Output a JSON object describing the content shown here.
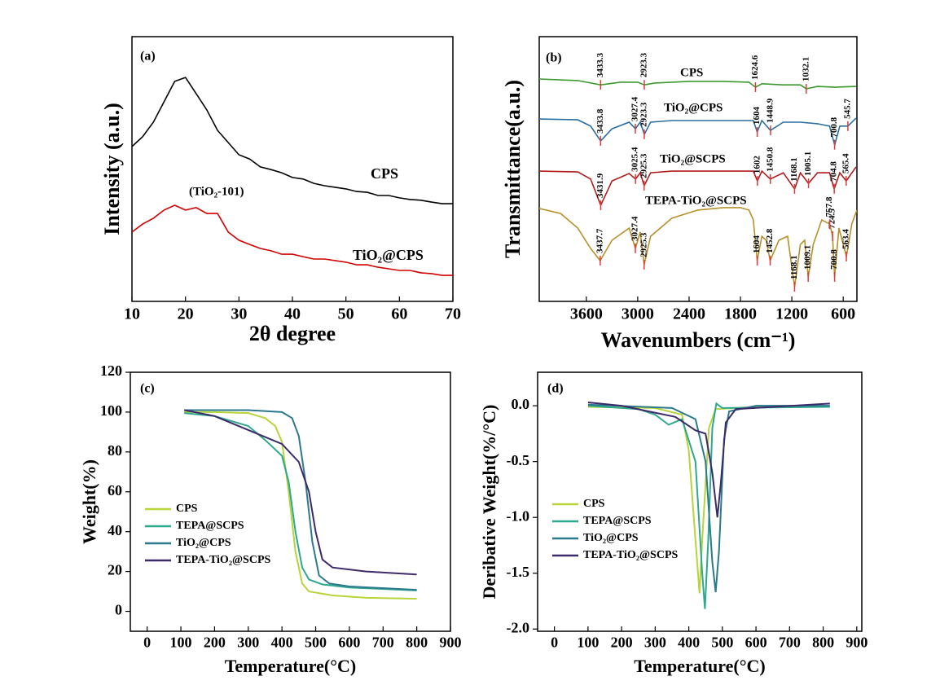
{
  "chart_data": [
    {
      "type": "line",
      "panel": "(a)",
      "xlabel": "2θ degree",
      "ylabel": "Intensity (a.u.)",
      "xlim": [
        10,
        70
      ],
      "xticks": [
        10,
        20,
        30,
        40,
        50,
        60,
        70
      ],
      "ylim": [
        0,
        100
      ],
      "annotation": "(TiO₂-101)",
      "series": [
        {
          "name": "CPS",
          "color": "#000000",
          "x": [
            10,
            12,
            14,
            16,
            18,
            20,
            22,
            24,
            26,
            28,
            30,
            32,
            34,
            36,
            38,
            40,
            42,
            44,
            46,
            48,
            50,
            52,
            54,
            56,
            58,
            60,
            62,
            64,
            66,
            68,
            70
          ],
          "values": [
            58.5,
            62.2,
            67.7,
            75.4,
            83.1,
            84.6,
            78.5,
            72.3,
            64.6,
            60,
            55.4,
            53.8,
            50.8,
            49.8,
            48.6,
            46.8,
            46.2,
            44.6,
            43.7,
            43.1,
            42.5,
            41.5,
            41.2,
            40,
            40,
            39.1,
            38.5,
            38.2,
            37.5,
            36.9,
            36.9
          ]
        },
        {
          "name": "TiO₂@CPS",
          "color": "#d40000",
          "x": [
            10,
            12,
            14,
            16,
            18,
            20,
            22,
            24,
            26,
            28,
            30,
            32,
            34,
            36,
            38,
            40,
            42,
            44,
            46,
            48,
            50,
            52,
            54,
            56,
            58,
            60,
            62,
            64,
            66,
            68,
            70
          ],
          "values": [
            26.2,
            29.2,
            31.4,
            34.5,
            36.3,
            34.5,
            35.4,
            33.2,
            33.2,
            26.2,
            23.1,
            21.5,
            20,
            19.1,
            17.8,
            17.8,
            16.9,
            16,
            16,
            15.4,
            14.8,
            13.8,
            13.8,
            12.9,
            12.3,
            11.7,
            11.7,
            10.8,
            10.5,
            9.8,
            9.8
          ]
        }
      ]
    },
    {
      "type": "line",
      "panel": "(b)",
      "xlabel": "Wavenumbers (cm⁻¹)",
      "ylabel": "Transmittance(a.u.)",
      "xlim": [
        4150,
        440
      ],
      "xticks": [
        3600,
        3000,
        2400,
        1800,
        1200,
        600
      ],
      "ylim": [
        0,
        100
      ],
      "peak_color": "#e03a3a",
      "series": [
        {
          "name": "CPS",
          "color": "#3a9a2e",
          "x": [
            4150,
            3700,
            3433,
            3200,
            3000,
            2923,
            2800,
            2400,
            2000,
            1700,
            1624,
            1550,
            1300,
            1100,
            1032,
            900,
            700,
            450
          ],
          "values": [
            84,
            83.4,
            81.8,
            82.8,
            82.8,
            81.8,
            82.5,
            83.1,
            83.1,
            82.8,
            80.9,
            82.2,
            81.8,
            81.8,
            80.3,
            81.2,
            80.9,
            81.2
          ],
          "peaks": [
            3433.3,
            2923.3,
            1624.6,
            1032.1
          ]
        },
        {
          "name": "TiO₂@CPS",
          "color": "#2a6fa0",
          "x": [
            4150,
            3700,
            3550,
            3433,
            3300,
            3100,
            3027,
            2970,
            2923,
            2850,
            2600,
            2200,
            1800,
            1650,
            1604,
            1550,
            1449,
            1300,
            1100,
            900,
            760,
            700,
            640,
            546,
            450
          ],
          "values": [
            68.9,
            68.6,
            66.2,
            60.6,
            65.2,
            67.7,
            65.2,
            67.7,
            63.1,
            67.7,
            68.3,
            68.3,
            68.3,
            68.3,
            64,
            68.3,
            64.6,
            67.7,
            67.7,
            67.1,
            66.2,
            59.1,
            66.2,
            66.2,
            69.2
          ],
          "peaks": [
            3433.8,
            3027.4,
            2923.3,
            1604,
            1448.9,
            700.8,
            545.7
          ]
        },
        {
          "name": "TiO₂@SCPS",
          "color": "#b01c1c",
          "x": [
            4150,
            3700,
            3550,
            3432,
            3300,
            3100,
            3025,
            2970,
            2925,
            2850,
            2600,
            2200,
            1800,
            1650,
            1602,
            1550,
            1451,
            1300,
            1168,
            1100,
            1005,
            900,
            760,
            705,
            640,
            565,
            450
          ],
          "values": [
            49.2,
            48.9,
            46.2,
            36.3,
            45.5,
            48.3,
            46.2,
            48.6,
            43.7,
            48.6,
            49.2,
            49.2,
            49.2,
            49.2,
            45.5,
            49.2,
            46.2,
            48.6,
            42.5,
            48.6,
            44.6,
            48.6,
            48.6,
            42.5,
            48.6,
            45.5,
            50.8
          ],
          "peaks": [
            3431.9,
            3025.4,
            2925.3,
            1602,
            1450.8,
            1168.1,
            1005.1,
            704.8,
            565.4
          ]
        },
        {
          "name": "TEPA-TiO₂@SCPS",
          "color": "#b8902a",
          "x": [
            4150,
            3900,
            3700,
            3550,
            3438,
            3300,
            3100,
            3027,
            2970,
            2925,
            2850,
            2600,
            2300,
            2000,
            1800,
            1700,
            1650,
            1604,
            1550,
            1500,
            1453,
            1350,
            1250,
            1168,
            1100,
            1050,
            1009,
            950,
            850,
            758,
            724,
            701,
            650,
            563,
            500,
            440
          ],
          "values": [
            35.1,
            33.2,
            27.7,
            20,
            15.4,
            23.1,
            27.7,
            20,
            26.2,
            13.8,
            24.6,
            31.4,
            34.5,
            35.4,
            35.4,
            34.5,
            30.8,
            15.4,
            24.6,
            23.1,
            15.4,
            23.1,
            24.6,
            5.5,
            21.5,
            23.1,
            9.2,
            21.5,
            30.8,
            29.2,
            24.6,
            9.2,
            27.7,
            16.9,
            29.2,
            34.5
          ],
          "peaks": [
            3437.7,
            3027.4,
            2925.3,
            1604,
            1452.8,
            1168.1,
            1009.1,
            724.5,
            757.8,
            700.8,
            563.4
          ]
        }
      ]
    },
    {
      "type": "line",
      "panel": "(c)",
      "xlabel": "Temperature(°C)",
      "ylabel": "Weight(%)",
      "xlim": [
        -50,
        900
      ],
      "xticks": [
        0,
        100,
        200,
        300,
        400,
        500,
        600,
        700,
        800,
        900
      ],
      "ylim": [
        -10,
        120
      ],
      "yticks": [
        0,
        20,
        40,
        60,
        80,
        100,
        120
      ],
      "legend": "lower left",
      "series": [
        {
          "name": "CPS",
          "color": "#b7d43a",
          "x": [
            110,
            200,
            300,
            350,
            380,
            400,
            420,
            440,
            460,
            480,
            550,
            650,
            800
          ],
          "values": [
            100,
            100,
            99.5,
            97,
            93,
            85,
            60,
            30,
            14,
            10,
            8,
            6.8,
            6.3
          ]
        },
        {
          "name": "TEPA@SCPS",
          "color": "#2ea88e",
          "x": [
            110,
            200,
            300,
            350,
            400,
            420,
            440,
            460,
            480,
            520,
            600,
            800
          ],
          "values": [
            99.5,
            98,
            93,
            86,
            78,
            65,
            40,
            22,
            16,
            13.5,
            12,
            10.5
          ]
        },
        {
          "name": "TiO₂@CPS",
          "color": "#2b7a8c",
          "x": [
            110,
            300,
            400,
            430,
            450,
            470,
            490,
            510,
            540,
            600,
            800
          ],
          "values": [
            101,
            101,
            100,
            97,
            88,
            65,
            35,
            18,
            14,
            12.5,
            10.8
          ]
        },
        {
          "name": "TEPA-TiO₂@SCPS",
          "color": "#3d2a6b",
          "x": [
            110,
            200,
            300,
            400,
            450,
            480,
            500,
            520,
            550,
            650,
            800
          ],
          "values": [
            101,
            98,
            91,
            84,
            75,
            60,
            40,
            26,
            22,
            20,
            18.5
          ]
        }
      ]
    },
    {
      "type": "line",
      "panel": "(d)",
      "xlabel": "Temperature(°C)",
      "ylabel": "Deribative Weight(%/°C)",
      "xlim": [
        -50,
        915
      ],
      "xticks": [
        0,
        100,
        200,
        300,
        400,
        500,
        600,
        700,
        800,
        900
      ],
      "ylim": [
        -2.02,
        0.3
      ],
      "yticks": [
        {
          "value": 0,
          "label": "0.0"
        },
        -0.5,
        {
          "value": -1,
          "label": "-1.0"
        },
        -1.5,
        {
          "value": -2,
          "label": "-2.0"
        }
      ],
      "legend": "center left",
      "series": [
        {
          "name": "CPS",
          "color": "#b7d43a",
          "x": [
            100,
            300,
            380,
            400,
            420,
            432,
            440,
            460,
            480,
            600,
            820
          ],
          "values": [
            -0.01,
            -0.02,
            -0.08,
            -0.4,
            -1.2,
            -1.68,
            -1.2,
            -0.2,
            -0.03,
            -0.01,
            -0.01
          ]
        },
        {
          "name": "TEPA@SCPS",
          "color": "#2ea88e",
          "x": [
            100,
            250,
            300,
            340,
            380,
            420,
            440,
            448,
            458,
            470,
            482,
            500,
            820
          ],
          "values": [
            0,
            -0.03,
            -0.08,
            -0.17,
            -0.12,
            -0.5,
            -1.5,
            -1.82,
            -1.2,
            -0.2,
            0.02,
            -0.02,
            -0.01
          ]
        },
        {
          "name": "TiO₂@CPS",
          "color": "#2b7a8c",
          "x": [
            100,
            350,
            420,
            450,
            470,
            480,
            490,
            505,
            520,
            600,
            820
          ],
          "values": [
            0.01,
            -0.02,
            -0.12,
            -0.5,
            -1.4,
            -1.67,
            -1.3,
            -0.3,
            -0.05,
            0,
            0
          ]
        },
        {
          "name": "TEPA-TiO₂@SCPS",
          "color": "#3d2a6b",
          "x": [
            100,
            200,
            280,
            360,
            420,
            450,
            470,
            485,
            495,
            510,
            540,
            820
          ],
          "values": [
            0.03,
            0,
            -0.05,
            -0.1,
            -0.22,
            -0.25,
            -0.6,
            -1,
            -0.7,
            -0.15,
            -0.03,
            0.02
          ]
        }
      ]
    }
  ]
}
